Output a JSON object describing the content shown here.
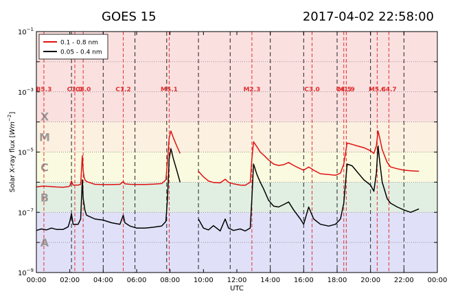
{
  "header": {
    "satellite": "GOES 15",
    "timestamp": "2017-04-02 22:58:00"
  },
  "chart_data": {
    "type": "line",
    "xlabel": "UTC",
    "ylabel": "Solar X-ray flux [Wm^-2]",
    "ylabel_main": "Solar X-ray flux [",
    "ylabel_unit": "Wm",
    "ylabel_exp": "−2",
    "ylabel_close": "]",
    "yscale": "log",
    "xlim": [
      0,
      24
    ],
    "ylim": [
      1e-09,
      0.1
    ],
    "x_ticks": [
      "00:00",
      "02:00",
      "04:00",
      "06:00",
      "08:00",
      "10:00",
      "12:00",
      "14:00",
      "16:00",
      "18:00",
      "20:00",
      "22:00",
      "00:00"
    ],
    "y_ticks": [
      {
        "value": 1e-09,
        "base": "10",
        "exp": "−9"
      },
      {
        "value": 1e-07,
        "base": "10",
        "exp": "−7"
      },
      {
        "value": 1e-05,
        "base": "10",
        "exp": "−5"
      },
      {
        "value": 0.001,
        "base": "10",
        "exp": "−3"
      },
      {
        "value": 0.1,
        "base": "10",
        "exp": "−1"
      }
    ],
    "bands": [
      {
        "label": "A",
        "from": 1e-09,
        "to": 1e-07,
        "color": "#e0e0f8"
      },
      {
        "label": "B",
        "from": 1e-07,
        "to": 1e-06,
        "color": "#e1efe2"
      },
      {
        "label": "C",
        "from": 1e-06,
        "to": 1e-05,
        "color": "#fafae0"
      },
      {
        "label": "M",
        "from": 1e-05,
        "to": 0.0001,
        "color": "#fcf0e0"
      },
      {
        "label": "X",
        "from": 0.0001,
        "to": 0.1,
        "color": "#fbe0e0"
      }
    ],
    "band_label_color": "#999999",
    "grid": true,
    "legend_position": "top-left",
    "flare_events": [
      {
        "label": "B5.3",
        "time": 0.45
      },
      {
        "label": "C1.0",
        "time": 2.3
      },
      {
        "label": "C8.0",
        "time": 2.8
      },
      {
        "label": "C1.2",
        "time": 5.2
      },
      {
        "label": "M5.1",
        "time": 7.95
      },
      {
        "label": "M2.3",
        "time": 12.9
      },
      {
        "label": "C3.0",
        "time": 16.5
      },
      {
        "label": "C4.5",
        "time": 18.4
      },
      {
        "label": "M1.9",
        "time": 18.55
      },
      {
        "label": "M5.6",
        "time": 20.4
      },
      {
        "label": "C4.7",
        "time": 21.1
      }
    ],
    "event_color": "#e03030",
    "dashed_times": [
      2.1,
      4.0,
      5.9,
      7.8,
      9.7,
      11.6,
      14.0,
      16.0,
      18.0,
      20.0,
      22.0
    ],
    "series": [
      {
        "name": "0.1 - 0.8 nm",
        "color": "#e01010",
        "points": [
          [
            0.0,
            7e-07
          ],
          [
            0.4,
            7.4e-07
          ],
          [
            0.8,
            7.2e-07
          ],
          [
            1.2,
            6.9e-07
          ],
          [
            1.6,
            6.8e-07
          ],
          [
            1.9,
            7.1e-07
          ],
          [
            2.0,
            7.5e-07
          ],
          [
            2.1,
            1.1e-06
          ],
          [
            2.2,
            8e-07
          ],
          [
            2.5,
            8e-07
          ],
          [
            2.65,
            8.5e-07
          ],
          [
            2.75,
            7.5e-06
          ],
          [
            2.8,
            2.5e-06
          ],
          [
            2.85,
            1.5e-06
          ],
          [
            2.9,
            1.2e-06
          ],
          [
            3.0,
            1.05e-06
          ],
          [
            3.5,
            8.5e-07
          ],
          [
            4.0,
            8.3e-07
          ],
          [
            4.5,
            8.3e-07
          ],
          [
            5.0,
            8.5e-07
          ],
          [
            5.2,
            1.05e-06
          ],
          [
            5.3,
            8.8e-07
          ],
          [
            5.6,
            8.5e-07
          ],
          [
            6.0,
            8.4e-07
          ],
          [
            6.5,
            8.4e-07
          ],
          [
            7.0,
            8.6e-07
          ],
          [
            7.5,
            9e-07
          ],
          [
            7.75,
            1.2e-06
          ],
          [
            7.85,
            5e-06
          ],
          [
            7.95,
            3e-05
          ],
          [
            8.05,
            5e-05
          ],
          [
            8.2,
            3e-05
          ],
          [
            8.4,
            1.6e-05
          ],
          [
            8.6,
            9e-06
          ],
          null,
          [
            9.7,
            2.3e-06
          ],
          [
            10.0,
            1.5e-06
          ],
          [
            10.3,
            1.1e-06
          ],
          [
            10.6,
            9.8e-07
          ],
          [
            11.0,
            9.5e-07
          ],
          [
            11.3,
            1.25e-06
          ],
          [
            11.5,
            1e-06
          ],
          [
            11.8,
            8.8e-07
          ],
          [
            12.2,
            8e-07
          ],
          [
            12.5,
            7.9e-07
          ],
          [
            12.8,
            1e-06
          ],
          [
            12.9,
            6e-06
          ],
          [
            13.0,
            2.2e-05
          ],
          [
            13.2,
            1.5e-05
          ],
          [
            13.4,
            1e-05
          ],
          [
            13.6,
            8e-06
          ],
          [
            13.9,
            5.5e-06
          ],
          [
            14.2,
            4e-06
          ],
          [
            14.5,
            3.6e-06
          ],
          [
            14.8,
            3.8e-06
          ],
          [
            15.1,
            4.5e-06
          ],
          [
            15.4,
            3.6e-06
          ],
          [
            15.8,
            2.8e-06
          ],
          [
            16.0,
            2.5e-06
          ],
          [
            16.3,
            3.2e-06
          ],
          [
            16.6,
            2.5e-06
          ],
          [
            17.0,
            1.9e-06
          ],
          [
            17.5,
            1.8e-06
          ],
          [
            17.9,
            1.7e-06
          ],
          [
            18.2,
            2e-06
          ],
          [
            18.4,
            4e-06
          ],
          [
            18.6,
            2e-05
          ],
          [
            18.9,
            1.8e-05
          ],
          [
            19.2,
            1.6e-05
          ],
          [
            19.6,
            1.4e-05
          ],
          [
            20.0,
            1.1e-05
          ],
          [
            20.2,
            9e-06
          ],
          [
            20.35,
            1.6e-05
          ],
          [
            20.45,
            5e-05
          ],
          [
            20.55,
            3e-05
          ],
          [
            20.7,
            1.2e-05
          ],
          [
            21.0,
            4.5e-06
          ],
          [
            21.2,
            3.2e-06
          ],
          [
            21.6,
            2.8e-06
          ],
          [
            22.0,
            2.5e-06
          ],
          [
            22.4,
            2.4e-06
          ],
          [
            22.9,
            2.3e-06
          ]
        ]
      },
      {
        "name": "0.05 - 0.4 nm",
        "color": "#000000",
        "points": [
          [
            0.0,
            2.5e-08
          ],
          [
            0.3,
            2.8e-08
          ],
          [
            0.6,
            2.6e-08
          ],
          [
            0.9,
            3e-08
          ],
          [
            1.2,
            2.7e-08
          ],
          [
            1.6,
            2.7e-08
          ],
          [
            1.9,
            3.3e-08
          ],
          [
            2.0,
            5e-08
          ],
          [
            2.1,
            9e-08
          ],
          [
            2.2,
            4e-08
          ],
          [
            2.5,
            4e-08
          ],
          [
            2.65,
            6e-08
          ],
          [
            2.75,
            1.2e-06
          ],
          [
            2.8,
            3e-07
          ],
          [
            2.9,
            1.2e-07
          ],
          [
            3.0,
            8e-08
          ],
          [
            3.5,
            6e-08
          ],
          [
            4.0,
            5.5e-08
          ],
          [
            4.5,
            4.5e-08
          ],
          [
            5.0,
            4e-08
          ],
          [
            5.2,
            8e-08
          ],
          [
            5.3,
            4.5e-08
          ],
          [
            5.6,
            3.5e-08
          ],
          [
            6.0,
            3e-08
          ],
          [
            6.5,
            3e-08
          ],
          [
            7.0,
            3.2e-08
          ],
          [
            7.5,
            3.5e-08
          ],
          [
            7.75,
            5e-08
          ],
          [
            7.85,
            3e-07
          ],
          [
            7.95,
            6e-06
          ],
          [
            8.05,
            1.3e-05
          ],
          [
            8.2,
            6e-06
          ],
          [
            8.4,
            2.5e-06
          ],
          [
            8.6,
            1e-06
          ],
          null,
          [
            9.7,
            6e-08
          ],
          [
            10.0,
            3e-08
          ],
          [
            10.3,
            2.6e-08
          ],
          [
            10.6,
            3.6e-08
          ],
          [
            11.0,
            2.4e-08
          ],
          [
            11.3,
            6e-08
          ],
          [
            11.5,
            3e-08
          ],
          [
            11.8,
            2.5e-08
          ],
          [
            12.2,
            2.8e-08
          ],
          [
            12.5,
            2.4e-08
          ],
          [
            12.8,
            3e-08
          ],
          [
            12.9,
            3e-07
          ],
          [
            13.0,
            4e-06
          ],
          [
            13.2,
            1.8e-06
          ],
          [
            13.4,
            1e-06
          ],
          [
            13.6,
            6e-07
          ],
          [
            13.9,
            2.5e-07
          ],
          [
            14.2,
            1.6e-07
          ],
          [
            14.5,
            1.5e-07
          ],
          [
            14.8,
            1.8e-07
          ],
          [
            15.1,
            2.2e-07
          ],
          [
            15.4,
            1.2e-07
          ],
          [
            15.8,
            6e-08
          ],
          [
            16.0,
            4e-08
          ],
          [
            16.3,
            1.5e-07
          ],
          [
            16.6,
            6e-08
          ],
          [
            17.0,
            4e-08
          ],
          [
            17.5,
            3.5e-08
          ],
          [
            17.9,
            4e-08
          ],
          [
            18.2,
            6e-08
          ],
          [
            18.4,
            2e-07
          ],
          [
            18.6,
            4e-06
          ],
          [
            18.9,
            3.5e-06
          ],
          [
            19.2,
            2.2e-06
          ],
          [
            19.6,
            1.2e-06
          ],
          [
            20.0,
            8e-07
          ],
          [
            20.2,
            5e-07
          ],
          [
            20.35,
            2e-06
          ],
          [
            20.45,
            1.6e-05
          ],
          [
            20.55,
            5e-06
          ],
          [
            20.7,
            1e-06
          ],
          [
            21.0,
            2.8e-07
          ],
          [
            21.2,
            2e-07
          ],
          [
            21.6,
            1.5e-07
          ],
          [
            22.0,
            1.2e-07
          ],
          [
            22.4,
            1e-07
          ],
          [
            22.9,
            1.3e-07
          ]
        ]
      }
    ]
  }
}
